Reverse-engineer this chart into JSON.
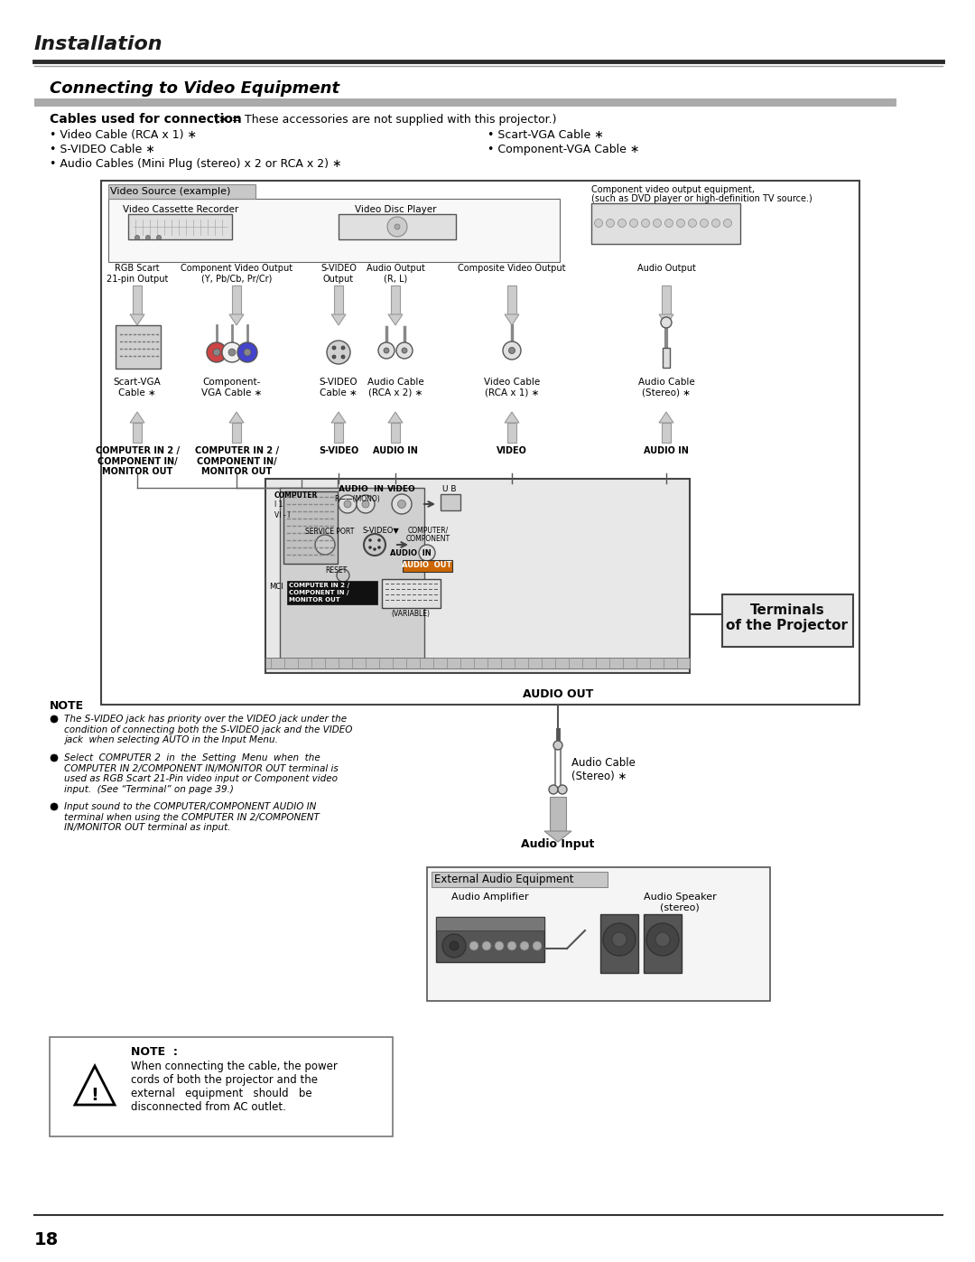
{
  "page_bg": "#ffffff",
  "header_title": "Installation",
  "section_title": "Connecting to Video Equipment",
  "cables_header": "Cables used for connection",
  "cables_note": "(∗ = These accessories are not supplied with this projector.)",
  "cables_left": [
    "Video Cable (RCA x 1) ∗",
    "S-VIDEO Cable ∗",
    "Audio Cables (Mini Plug (stereo) x 2 or RCA x 2) ∗"
  ],
  "cables_right": [
    "Scart-VGA Cable ∗",
    "Component-VGA Cable ∗"
  ],
  "note_title": "NOTE",
  "note_bullets": [
    "The S-VIDEO jack has priority over the VIDEO jack under the\ncondition of connecting both the S-VIDEO jack and the VIDEO\njack  when selecting AUTO in the Input Menu.",
    "Select  COMPUTER 2  in  the  Setting  Menu  when  the\nCOMPUTER IN 2/COMPONENT IN/MONITOR OUT terminal is\nused as RGB Scart 21-Pin video input or Component video\ninput.  (See “Terminal” on page 39.)",
    "Input sound to the COMPUTER/COMPONENT AUDIO IN\nterminal when using the COMPUTER IN 2/COMPONENT\nIN/MONITOR OUT terminal as input."
  ],
  "warning_note_title": "NOTE  :",
  "warning_note_text": "When connecting the cable, the power\ncords of both the projector and the\nexternal   equipment   should   be\ndisconnected from AC outlet.",
  "terminals_label": "Terminals\nof the Projector",
  "audio_out_label": "AUDIO OUT",
  "audio_cable_label": "Audio Cable\n(Stereo) ∗",
  "audio_input_label": "Audio Input",
  "external_audio_label": "External Audio Equipment",
  "audio_amp_label": "Audio Amplifier",
  "audio_speaker_label": "Audio Speaker\n(stereo)",
  "page_number": "18"
}
